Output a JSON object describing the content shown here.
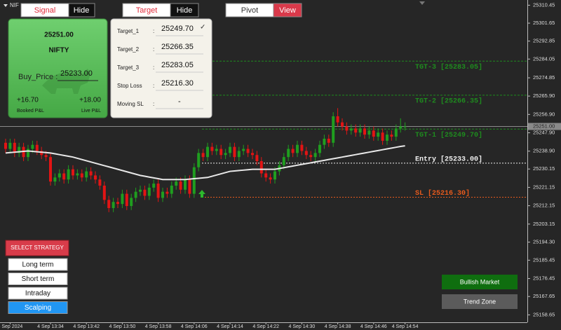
{
  "symbol": "NIF",
  "tabs": {
    "signal": "Signal",
    "signal_hide": "Hide",
    "target": "Target",
    "target_hide": "Hide",
    "pivot": "Pivot",
    "pivot_view": "View"
  },
  "signal_card": {
    "price": "25251.00",
    "name": "NIFTY",
    "buy_label": "Buy_Price :",
    "buy_value": "25233.00",
    "booked": "+16.70",
    "live": "+18.00",
    "booked_label": "Booked P&L",
    "live_label": "Live P&L"
  },
  "target_card": {
    "separator": ":",
    "check": "✓",
    "rows": [
      {
        "label": "Target_1",
        "value": "25249.70"
      },
      {
        "label": "Target_2",
        "value": "25266.35"
      },
      {
        "label": "Target_3",
        "value": "25283.05"
      },
      {
        "label": "Stop Loss",
        "value": "25216.30"
      },
      {
        "label": "Moving SL",
        "value": "-"
      }
    ]
  },
  "strategy": {
    "title": "SELECT STRATEGY",
    "options": [
      "Long term",
      "Short term",
      "Intraday",
      "Scalping"
    ]
  },
  "market": {
    "status": "Bullish Market",
    "zone": "Trend Zone"
  },
  "chart_data": {
    "type": "candlestick",
    "categories": [
      null,
      "4 Sep 2024",
      null,
      null,
      null,
      null,
      null,
      null,
      null,
      null,
      "4 Sep 13:34",
      null,
      null,
      null,
      null,
      null,
      null,
      null,
      "4 Sep 13:42",
      null,
      null,
      null,
      null,
      null,
      null,
      null,
      "4 Sep 13:50",
      null,
      null,
      null,
      null,
      null,
      null,
      null,
      "4 Sep 13:58",
      null,
      null,
      null,
      null,
      null,
      null,
      null,
      "4 Sep 14:06",
      null,
      null,
      null,
      null,
      null,
      null,
      null,
      "4 Sep 14:14",
      null,
      null,
      null,
      null,
      null,
      null,
      null,
      "4 Sep 14:22",
      null,
      null,
      null,
      null,
      null,
      null,
      null,
      "4 Sep 14:30",
      null,
      null,
      null,
      null,
      null,
      null,
      null,
      "4 Sep 14:38",
      null,
      null,
      null,
      null,
      null,
      null,
      null,
      "4 Sep 14:46",
      null,
      null,
      null,
      null,
      null,
      null,
      "4 Sep 14:54"
    ],
    "open": [
      25243,
      25240,
      25243,
      25238,
      25241,
      25236,
      25240,
      25242,
      25239,
      25237,
      25236,
      25224,
      25226,
      25228,
      25225,
      25230,
      25227,
      25228,
      25226,
      25229,
      25227,
      25225,
      25222,
      25215,
      25211,
      25214,
      25213,
      25218,
      25212,
      25216,
      25219,
      25220,
      25217,
      25221,
      25223,
      25216,
      25219,
      25218,
      25222,
      25224,
      25220,
      25225,
      25218,
      25231,
      25238,
      25236,
      25241,
      25239,
      25240,
      25237,
      25238,
      25241,
      25236,
      25239,
      25240,
      25238,
      25237,
      25234,
      25228,
      25226,
      25225,
      25229,
      25232,
      25236,
      25240,
      25238,
      25242,
      25239,
      25237,
      25236,
      25238,
      25242,
      25245,
      25243,
      25256,
      25253,
      25251,
      25249,
      25250,
      25248,
      25250,
      25247,
      25249,
      25246,
      25248,
      25244,
      25247,
      25246,
      25250,
      25251
    ],
    "high": [
      25245,
      25245,
      25245,
      25243,
      25243,
      25242,
      25244,
      25244,
      25241,
      25239,
      25238,
      25228,
      25230,
      25230,
      25232,
      25232,
      25230,
      25230,
      25231,
      25231,
      25229,
      25227,
      25224,
      25217,
      25216,
      25216,
      25220,
      25220,
      25218,
      25221,
      25222,
      25222,
      25223,
      25225,
      25225,
      25221,
      25221,
      25224,
      25226,
      25226,
      25227,
      25227,
      25233,
      25240,
      25240,
      25243,
      25243,
      25242,
      25242,
      25240,
      25243,
      25243,
      25241,
      25242,
      25242,
      25240,
      25239,
      25236,
      25230,
      25228,
      25231,
      25234,
      25238,
      25242,
      25242,
      25244,
      25244,
      25241,
      25239,
      25240,
      25244,
      25247,
      25247,
      25258,
      25260,
      25255,
      25253,
      25252,
      25252,
      25252,
      25252,
      25251,
      25251,
      25250,
      25250,
      25249,
      25249,
      25252,
      25255,
      25253
    ],
    "low": [
      25238,
      25238,
      25236,
      25236,
      25234,
      25234,
      25238,
      25237,
      25235,
      25234,
      25222,
      25222,
      25224,
      25223,
      25223,
      25225,
      25225,
      25224,
      25224,
      25225,
      25223,
      25220,
      25213,
      25209,
      25209,
      25211,
      25211,
      25210,
      25210,
      25214,
      25217,
      25215,
      25215,
      25219,
      25214,
      25214,
      25216,
      25216,
      25220,
      25218,
      25218,
      25216,
      25216,
      25229,
      25234,
      25234,
      25237,
      25237,
      25235,
      25235,
      25236,
      25234,
      25234,
      25237,
      25236,
      25235,
      25232,
      25226,
      25224,
      25223,
      25223,
      25227,
      25230,
      25234,
      25236,
      25236,
      25237,
      25235,
      25234,
      25234,
      25236,
      25240,
      25241,
      25241,
      25251,
      25249,
      25247,
      25247,
      25246,
      25246,
      25245,
      25245,
      25244,
      25244,
      25242,
      25242,
      25244,
      25244,
      25248,
      25249
    ],
    "close": [
      25240,
      25243,
      25238,
      25241,
      25236,
      25240,
      25242,
      25239,
      25237,
      25236,
      25224,
      25226,
      25228,
      25225,
      25230,
      25227,
      25228,
      25226,
      25229,
      25227,
      25225,
      25222,
      25215,
      25211,
      25214,
      25213,
      25218,
      25212,
      25216,
      25219,
      25220,
      25217,
      25221,
      25223,
      25216,
      25219,
      25218,
      25222,
      25224,
      25220,
      25225,
      25218,
      25231,
      25238,
      25236,
      25241,
      25239,
      25240,
      25237,
      25238,
      25241,
      25236,
      25239,
      25240,
      25238,
      25237,
      25234,
      25228,
      25226,
      25225,
      25229,
      25232,
      25236,
      25240,
      25238,
      25242,
      25239,
      25237,
      25236,
      25238,
      25242,
      25245,
      25243,
      25256,
      25253,
      25251,
      25249,
      25250,
      25248,
      25250,
      25247,
      25249,
      25246,
      25248,
      25244,
      25247,
      25246,
      25250,
      25251,
      25251
    ],
    "up_color": "#1f9e1f",
    "down_color": "#e31414",
    "ma": {
      "color": "#e8e8e8",
      "values": [
        25238,
        25238.2,
        25238.4,
        25238.6,
        25238.8,
        25239,
        25238.8,
        25238.6,
        25238.4,
        25238.2,
        25238,
        25237.6,
        25237.2,
        25236.8,
        25236.4,
        25236,
        25235.4,
        25234.8,
        25234.2,
        25233.6,
        25233,
        25232.4,
        25231.8,
        25231.2,
        25230.6,
        25230,
        25229.4,
        25228.8,
        25228.2,
        25227.6,
        25227,
        25226.6,
        25226.2,
        25225.8,
        25225.4,
        25225,
        25225,
        25225,
        25225,
        25225,
        25225,
        25225.2,
        25225.4,
        25225.6,
        25225.8,
        25226,
        25226.6,
        25227.2,
        25227.8,
        25228.4,
        25229,
        25229.2,
        25229.4,
        25229.6,
        25229.8,
        25230,
        25230,
        25230,
        25230,
        25230,
        25230,
        25230.4,
        25230.8,
        25231.2,
        25231.6,
        25232,
        25232.4,
        25232.8,
        25233.2,
        25233.6,
        25234,
        25234.4,
        25234.8,
        25235.2,
        25235.6,
        25236,
        25236.4,
        25236.8,
        25237.2,
        25237.6,
        25238,
        25238.4,
        25238.8,
        25239.2,
        25239.6,
        25240,
        25240.4,
        25240.8,
        25241.2,
        25241.5
      ]
    },
    "levels": [
      {
        "label": "TGT-3 [25283.05]",
        "value": 25283.05,
        "color": "#1e8c1e"
      },
      {
        "label": "TGT-2 [25266.35]",
        "value": 25266.35,
        "color": "#1e8c1e"
      },
      {
        "label": "TGT-1 [25249.70]",
        "value": 25249.7,
        "color": "#1e8c1e"
      },
      {
        "label": "Entry [25233.00]",
        "value": 25233,
        "color": "#f0f0f0"
      },
      {
        "label": "SL [25216.30]",
        "value": 25216.3,
        "color": "#e85a1c"
      }
    ],
    "last_price": {
      "value": 25251,
      "label": "25251.00"
    },
    "ylim": [
      25155,
      25313
    ],
    "yticks": [
      25310.45,
      25301.65,
      25292.85,
      25284.05,
      25274.85,
      {
        "value": 25265.9,
        "label": "25265.90"
      },
      {
        "value": 25256.9,
        "label": "25256.90"
      },
      {
        "value": 25247.9,
        "label": "25247.90"
      },
      {
        "value": 25238.9,
        "label": "25238.90"
      },
      25230.15,
      25221.15,
      25212.15,
      25203.15,
      {
        "value": 25194.3,
        "label": "25194.30"
      },
      25185.45,
      25176.45,
      25167.65,
      25158.65
    ]
  }
}
